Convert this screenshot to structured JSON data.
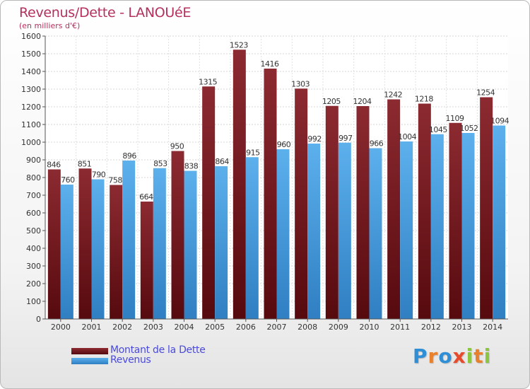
{
  "chart_data": {
    "type": "bar",
    "title": "Revenus/Dette - LANOUéE",
    "subtitle": "(en milliers d'€)",
    "categories": [
      "2000",
      "2001",
      "2002",
      "2003",
      "2004",
      "2005",
      "2006",
      "2007",
      "2008",
      "2009",
      "2010",
      "2011",
      "2012",
      "2013",
      "2014"
    ],
    "series": [
      {
        "name": "Montant de la Dette",
        "color": "#7a1e22",
        "values": [
          846,
          851,
          758,
          664,
          950,
          1315,
          1523,
          1416,
          1303,
          1205,
          1204,
          1242,
          1218,
          1109,
          1254
        ]
      },
      {
        "name": "Revenus",
        "color": "#4aa3e3",
        "values": [
          760,
          790,
          896,
          853,
          838,
          864,
          915,
          960,
          992,
          997,
          966,
          1004,
          1045,
          1052,
          1094
        ]
      }
    ],
    "ylim": [
      0,
      1600
    ],
    "yticks": [
      0,
      100,
      200,
      300,
      400,
      500,
      600,
      700,
      800,
      900,
      1000,
      1100,
      1200,
      1300,
      1400,
      1500,
      1600
    ],
    "grid": true,
    "legend_position": "bottom-left"
  },
  "logo": {
    "letters": [
      "P",
      "r",
      "o",
      "x",
      "i",
      "t",
      "i"
    ],
    "colors": [
      "#2f8fd6",
      "#e8802c",
      "#2f8fd6",
      "#e84a2c",
      "#8cc63f",
      "#e8802c",
      "#8cc63f"
    ]
  }
}
